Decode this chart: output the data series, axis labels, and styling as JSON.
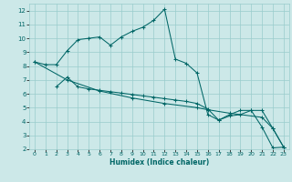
{
  "xlabel": "Humidex (Indice chaleur)",
  "bg_color": "#cce8e8",
  "grid_color": "#99cccc",
  "line_color": "#006666",
  "xlim": [
    -0.5,
    23.5
  ],
  "ylim": [
    2,
    12.5
  ],
  "xticks": [
    0,
    1,
    2,
    3,
    4,
    5,
    6,
    7,
    8,
    9,
    10,
    11,
    12,
    13,
    14,
    15,
    16,
    17,
    18,
    19,
    20,
    21,
    22,
    23
  ],
  "yticks": [
    2,
    3,
    4,
    5,
    6,
    7,
    8,
    9,
    10,
    11,
    12
  ],
  "xtick_labels": [
    "0",
    "1",
    "2",
    "3",
    "4",
    "5",
    "6",
    "7",
    "8",
    "9",
    "10",
    "11",
    "12",
    "13",
    "14",
    "15",
    "16",
    "17",
    "18",
    "19",
    "20",
    "21",
    "22",
    "23"
  ],
  "series": [
    {
      "x": [
        0,
        1,
        2,
        3,
        4,
        5,
        6,
        7,
        8,
        9,
        10,
        11,
        12,
        13,
        14,
        15,
        16,
        17,
        18,
        19,
        20,
        21,
        22,
        23
      ],
      "y": [
        8.3,
        8.1,
        8.1,
        9.1,
        9.9,
        10.0,
        10.1,
        9.5,
        10.1,
        10.5,
        10.8,
        11.3,
        12.1,
        8.5,
        8.2,
        7.5,
        4.5,
        4.1,
        4.5,
        4.8,
        4.8,
        3.6,
        2.1,
        2.15
      ]
    },
    {
      "x": [
        2,
        3,
        4,
        5,
        6,
        7,
        8,
        9,
        10,
        11,
        12,
        13,
        14,
        15,
        16,
        17,
        18,
        19,
        20,
        21,
        22,
        23
      ],
      "y": [
        6.5,
        7.2,
        6.5,
        6.35,
        6.25,
        6.15,
        6.05,
        5.95,
        5.85,
        5.75,
        5.65,
        5.55,
        5.45,
        5.3,
        4.9,
        4.1,
        4.4,
        4.5,
        4.8,
        4.8,
        3.5,
        2.15
      ]
    },
    {
      "x": [
        0,
        3,
        6,
        9,
        12,
        15,
        16,
        18,
        21,
        22,
        23
      ],
      "y": [
        8.3,
        7.0,
        6.2,
        5.7,
        5.3,
        5.0,
        4.85,
        4.6,
        4.3,
        3.5,
        2.15
      ]
    }
  ]
}
